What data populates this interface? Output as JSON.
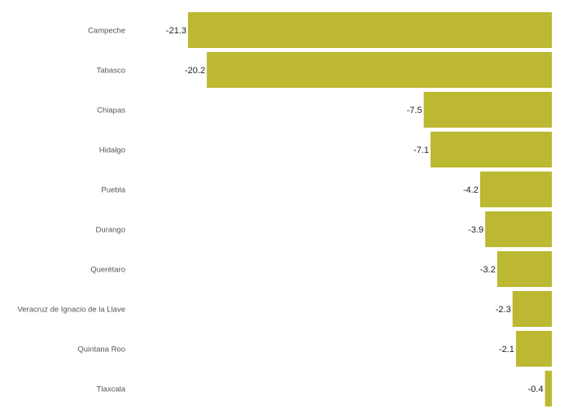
{
  "chart_data": {
    "type": "bar",
    "orientation": "horizontal",
    "title": "",
    "xlabel": "",
    "ylabel": "",
    "categories": [
      "Campeche",
      "Tabasco",
      "Chiapas",
      "Hidalgo",
      "Puebla",
      "Durango",
      "Querétaro",
      "Veracruz de Ignacio de la Llave",
      "Quintana Roo",
      "Tlaxcala"
    ],
    "values": [
      -21.3,
      -20.2,
      -7.5,
      -7.1,
      -4.2,
      -3.9,
      -3.2,
      -2.3,
      -2.1,
      -0.4
    ],
    "value_labels": [
      "-21.3",
      "-20.2",
      "-7.5",
      "-7.1",
      "-4.2",
      "-3.9",
      "-3.2",
      "-2.3",
      "-2.1",
      "-0.4"
    ],
    "xlim": [
      -21.3,
      0
    ],
    "bar_color": "#bcb832",
    "grid": false,
    "legend": "none"
  }
}
